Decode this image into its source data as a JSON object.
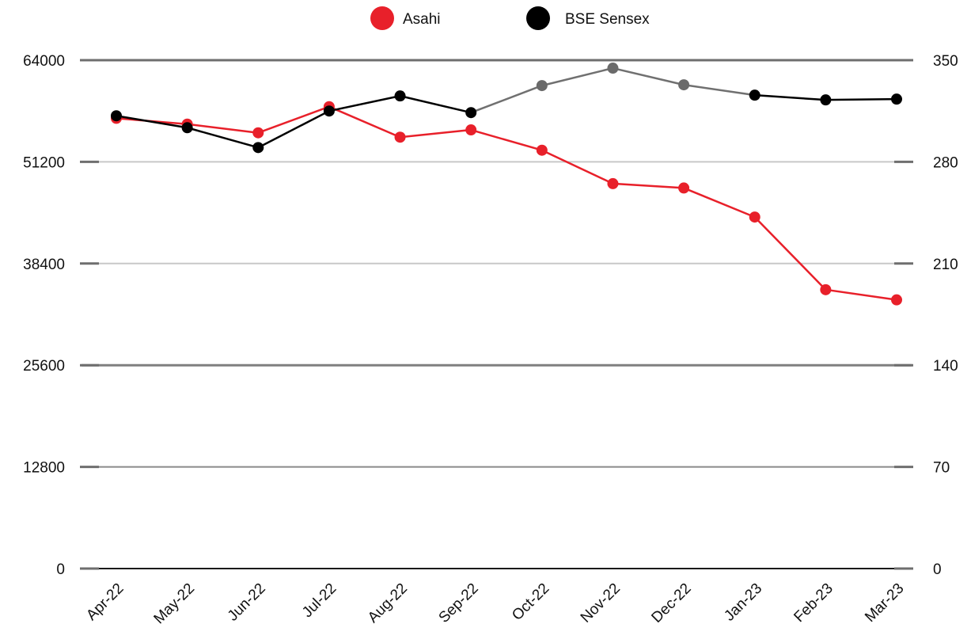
{
  "chart_data": {
    "type": "line",
    "categories": [
      "Apr-22",
      "May-22",
      "Jun-22",
      "Jul-22",
      "Aug-22",
      "Sep-22",
      "Oct-22",
      "Nov-22",
      "Dec-22",
      "Jan-23",
      "Feb-23",
      "Mar-23"
    ],
    "y_left": {
      "ticks": [
        "0",
        "12800",
        "25600",
        "38400",
        "51200",
        "64000"
      ],
      "ylim": [
        0,
        64000
      ]
    },
    "y_right": {
      "ticks": [
        "0",
        "70",
        "140",
        "210",
        "280",
        "350"
      ],
      "ylim": [
        0,
        350
      ]
    },
    "series": [
      {
        "name": "Asahi",
        "axis": "right",
        "color": "#e8202a",
        "values": [
          310,
          306,
          300,
          318,
          297,
          302,
          288,
          265,
          262,
          242,
          192,
          185
        ]
      },
      {
        "name": "BSE Sensex",
        "axis": "left",
        "color": "#000000",
        "values": [
          57000,
          55500,
          53000,
          57600,
          59500,
          57400,
          60800,
          63000,
          60900,
          59600,
          59000,
          59100
        ]
      }
    ],
    "legend_position": "top-center",
    "grid": true
  }
}
